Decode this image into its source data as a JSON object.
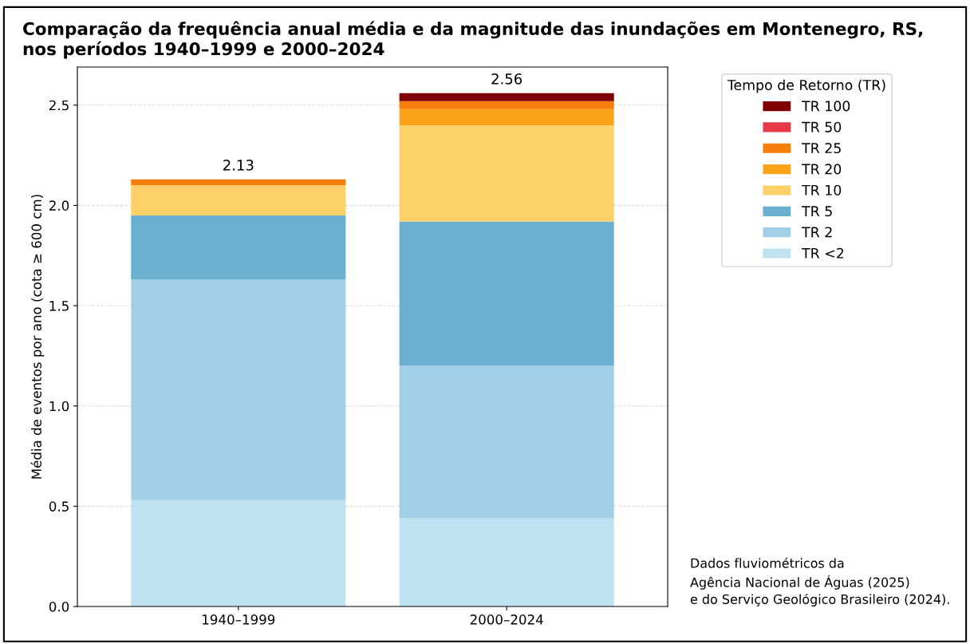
{
  "chart_data": {
    "type": "bar",
    "stacked": true,
    "title": "Comparação da frequência anual média e da magnitude das inundações em Montenegro, RS,\nnos períodos 1940–1999 e 2000–2024",
    "ylabel": "Média de eventos por ano (cota ≥ 600 cm)",
    "legend_title": "Tempo de Retorno (TR)",
    "categories": [
      "1940–1999",
      "2000–2024"
    ],
    "series": [
      {
        "name": "TR <2",
        "color": "#bfe2f0",
        "values": [
          0.53,
          0.44
        ]
      },
      {
        "name": "TR 2",
        "color": "#a1cfe5",
        "values": [
          1.1,
          0.76
        ]
      },
      {
        "name": "TR 5",
        "color": "#6cb0d1",
        "values": [
          0.32,
          0.72
        ]
      },
      {
        "name": "TR 10",
        "color": "#fdd06a",
        "values": [
          0.15,
          0.48
        ]
      },
      {
        "name": "TR 20",
        "color": "#fca31a",
        "values": [
          0,
          0.08
        ]
      },
      {
        "name": "TR 25",
        "color": "#f57f0a",
        "values": [
          0.03,
          0.04
        ]
      },
      {
        "name": "TR 50",
        "color": "#e63946",
        "values": [
          0,
          0
        ]
      },
      {
        "name": "TR 100",
        "color": "#800000",
        "values": [
          0,
          0.04
        ]
      }
    ],
    "totals": [
      "2.13",
      "2.56"
    ],
    "ylim": [
      0,
      2.69
    ],
    "yticks": [
      {
        "value": 0,
        "label": "0.0"
      },
      0.5,
      {
        "value": 1,
        "label": "1.0"
      },
      1.5,
      {
        "value": 2,
        "label": "2.0"
      },
      2.5
    ],
    "grid": "y",
    "legend": "top right",
    "annotations": [
      "Dados fluviométricos da\nAgência Nacional de Águas (2025)\ne do Serviço Geológico Brasileiro (2024)."
    ]
  }
}
